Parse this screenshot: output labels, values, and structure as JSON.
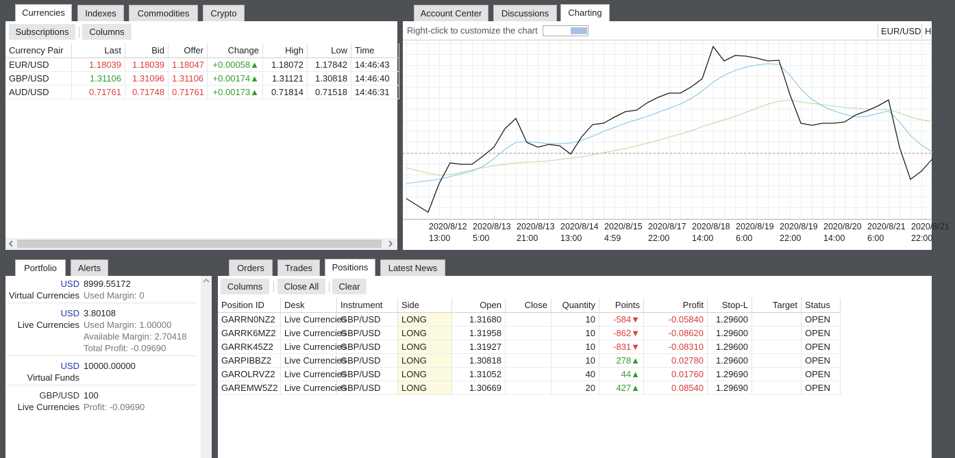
{
  "currencies": {
    "tabs": [
      "Currencies",
      "Indexes",
      "Commodities",
      "Crypto"
    ],
    "toolbar": [
      "Subscriptions",
      "Columns"
    ],
    "columns": [
      "Currency Pair",
      "Last",
      "Bid",
      "Offer",
      "Change",
      "High",
      "Low",
      "Time"
    ],
    "rows": [
      [
        "EUR/USD",
        "1.18039",
        "1.18039",
        "1.18047",
        "+0.00058▲",
        "1.18072",
        "1.17842",
        "14:46:43"
      ],
      [
        "GBP/USD",
        "1.31106",
        "1.31096",
        "1.31106",
        "+0.00174▲",
        "1.31121",
        "1.30818",
        "14:46:40"
      ],
      [
        "AUD/USD",
        "0.71761",
        "0.71748",
        "0.71761",
        "+0.00173▲",
        "0.71814",
        "0.71518",
        "14:46:31"
      ]
    ],
    "last_colors": [
      "#e03a3a",
      "#2e9e2e",
      "#e03a3a"
    ]
  },
  "right_tabs": [
    "Account Center",
    "Discussions",
    "Charting"
  ],
  "charting": {
    "hint": "Right-click to customize the chart",
    "symbol": "EUR/USD",
    "period": "H"
  },
  "chart_data": {
    "type": "line",
    "categories": [
      null,
      null,
      "2020/8/12 13:00",
      null,
      null,
      null,
      "2020/8/13 5:00",
      null,
      null,
      null,
      "2020/8/13 21:00",
      null,
      null,
      null,
      "2020/8/14 13:00",
      null,
      null,
      null,
      "2020/8/15 4:59",
      null,
      null,
      null,
      "2020/8/17 22:00",
      null,
      null,
      null,
      "2020/8/18 14:00",
      null,
      null,
      null,
      "2020/8/19 6:00",
      null,
      null,
      null,
      "2020/8/19 22:00",
      null,
      null,
      null,
      "2020/8/20 14:00",
      null,
      null,
      null,
      "2020/8/21 6:00",
      null,
      null,
      null,
      "2020/8/21 22:00",
      null,
      null
    ],
    "series": [
      {
        "color": "#1e1e1e",
        "values": [
          1.1738,
          1.1728,
          1.1718,
          1.176,
          1.179,
          1.1788,
          1.1788,
          1.18,
          1.1813,
          1.184,
          1.1855,
          1.182,
          1.1813,
          1.1817,
          1.1815,
          1.1803,
          1.1828,
          1.1846,
          1.1848,
          1.1857,
          1.1865,
          1.1867,
          1.1878,
          1.1886,
          1.1892,
          1.1892,
          1.1901,
          1.1913,
          1.196,
          1.1939,
          1.1947,
          1.1946,
          1.1943,
          1.1939,
          1.194,
          1.189,
          1.1848,
          1.1845,
          1.1848,
          1.1848,
          1.185,
          1.186,
          1.1866,
          1.1873,
          1.1882,
          1.1813,
          1.1766,
          1.1778,
          1.1796
        ]
      },
      {
        "color": "#86c5e8",
        "values": [
          1.176,
          1.1762,
          1.1764,
          1.1766,
          1.177,
          1.1774,
          1.1778,
          1.1785,
          1.1796,
          1.181,
          1.182,
          1.1821,
          1.182,
          1.1818,
          1.1818,
          1.1819,
          1.1823,
          1.1829,
          1.1836,
          1.1842,
          1.1848,
          1.1853,
          1.1858,
          1.1864,
          1.187,
          1.1876,
          1.1884,
          1.1895,
          1.1908,
          1.1918,
          1.1925,
          1.193,
          1.1933,
          1.1935,
          1.1934,
          1.1918,
          1.1898,
          1.1883,
          1.1873,
          1.1866,
          1.1861,
          1.1857,
          1.1858,
          1.1862,
          1.1866,
          1.185,
          1.183,
          1.1816,
          1.1806
        ]
      },
      {
        "color": "#b2dc9c",
        "values": [
          1.1783,
          1.1779,
          1.1775,
          1.1772,
          1.1773,
          1.1776,
          1.178,
          1.1783,
          1.1786,
          1.1788,
          1.179,
          1.1791,
          1.1792,
          1.1793,
          1.1795,
          1.1797,
          1.1799,
          1.1802,
          1.1805,
          1.1808,
          1.1811,
          1.1815,
          1.1819,
          1.1823,
          1.1828,
          1.1832,
          1.1837,
          1.1843,
          1.1848,
          1.1853,
          1.1858,
          1.1864,
          1.187,
          1.1876,
          1.188,
          1.1882,
          1.1879,
          1.1877,
          1.1875,
          1.1873,
          1.1871,
          1.187,
          1.1869,
          1.1868,
          1.1868,
          1.1863,
          1.1857,
          1.1853,
          1.185
        ]
      }
    ],
    "ylim": [
      1.1708,
      1.197
    ],
    "last_price": 1.1804,
    "grid": true
  },
  "portfolio": {
    "tabs": [
      "Portfolio",
      "Alerts"
    ],
    "items": [
      {
        "currency": "USD",
        "color": "#1f3aa8",
        "amount": "8999.55172",
        "account": "Virtual Currencies",
        "details": [
          {
            "label": "Used Margin:",
            "value": "0"
          }
        ]
      },
      {
        "currency": "USD",
        "color": "#1f3aa8",
        "amount": "3.80108",
        "account": "Live Currencies",
        "details": [
          {
            "label": "Used Margin:",
            "value": "1.00000"
          },
          {
            "label": "Available Margin:",
            "value": "2.70418"
          },
          {
            "label": "Total Profit:",
            "value": "-0.09690"
          }
        ]
      },
      {
        "currency": "USD",
        "color": "#1f3aa8",
        "amount": "10000.00000",
        "account": "Virtual Funds",
        "details": []
      },
      {
        "currency": "GBP/USD",
        "color": "#333333",
        "amount": "100",
        "account": "Live Currencies",
        "details": [
          {
            "label": "Profit:",
            "value": "-0.09690"
          }
        ]
      }
    ]
  },
  "positions": {
    "tabs": [
      "Orders",
      "Trades",
      "Positions",
      "Latest News"
    ],
    "toolbar": [
      "Columns",
      "Close All",
      "Clear"
    ],
    "columns": [
      "Position ID",
      "Desk",
      "Instrument",
      "Side",
      "Open",
      "Close",
      "Quantity",
      "Points",
      "Profit",
      "Stop-L",
      "Target",
      "Status"
    ],
    "rows": [
      [
        "GARRN0NZ2",
        "Live Currencies",
        "GBP/USD",
        "LONG",
        "1.31680",
        null,
        "10",
        "-584▼",
        "-0.05840",
        "1.29600",
        null,
        "OPEN"
      ],
      [
        "GARRK6MZ2",
        "Live Currencies",
        "GBP/USD",
        "LONG",
        "1.31958",
        null,
        "10",
        "-862▼",
        "-0.08620",
        "1.29600",
        null,
        "OPEN"
      ],
      [
        "GARRK45Z2",
        "Live Currencies",
        "GBP/USD",
        "LONG",
        "1.31927",
        null,
        "10",
        "-831▼",
        "-0.08310",
        "1.29600",
        null,
        "OPEN"
      ],
      [
        "GARPIBBZ2",
        "Live Currencies",
        "GBP/USD",
        "LONG",
        "1.30818",
        null,
        "10",
        "278▲",
        "0.02780",
        "1.29600",
        null,
        "OPEN"
      ],
      [
        "GAROLRVZ2",
        "Live Currencies",
        "GBP/USD",
        "LONG",
        "1.31052",
        null,
        "40",
        "44▲",
        "0.01760",
        "1.29690",
        null,
        "OPEN"
      ],
      [
        "GAREMW5Z2",
        "Live Currencies",
        "GBP/USD",
        "LONG",
        "1.30669",
        null,
        "20",
        "427▲",
        "0.08540",
        "1.29690",
        null,
        "OPEN"
      ]
    ]
  }
}
